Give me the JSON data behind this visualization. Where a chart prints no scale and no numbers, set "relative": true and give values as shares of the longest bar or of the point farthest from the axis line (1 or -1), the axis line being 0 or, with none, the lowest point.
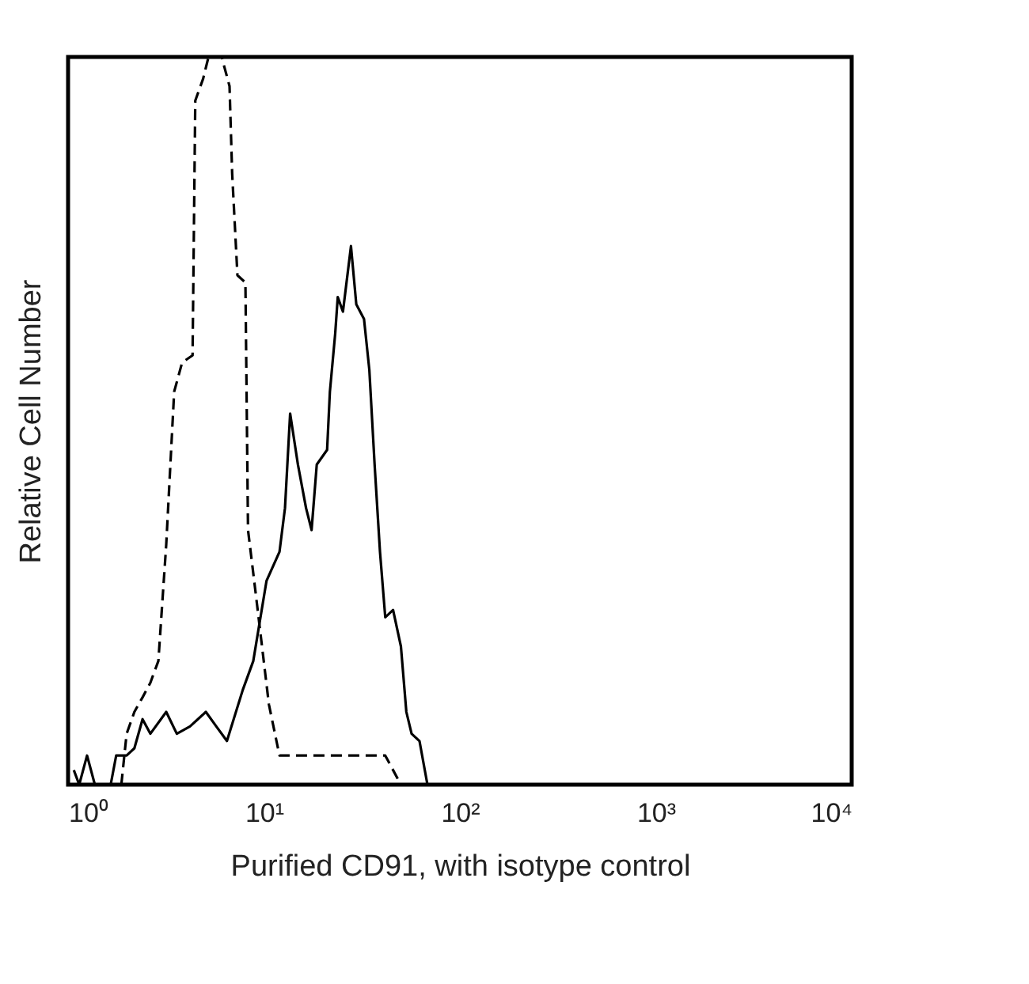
{
  "chart_data": {
    "type": "line",
    "xlabel": "Purified CD91, with isotype control",
    "ylabel": "Relative Cell Number",
    "relative": true,
    "log": "x",
    "grid": false,
    "marker": "none",
    "xlim": [
      1,
      10000
    ],
    "xticks": [
      {
        "value": 1,
        "label": "10⁰"
      },
      {
        "value": 10,
        "label": "10¹"
      },
      {
        "value": 100,
        "label": "10²"
      },
      {
        "value": 1000,
        "label": "10³"
      },
      {
        "value": 10000,
        "label": "10⁴"
      }
    ],
    "series": [
      {
        "color": "#000000",
        "line_style": "dashed",
        "x": [
          1.87,
          1.99,
          2.18,
          2.4,
          2.63,
          2.89,
          3.17,
          3.48,
          3.82,
          4.32,
          4.46,
          4.89,
          5.21,
          6.08,
          6.67,
          6.88,
          7.32,
          8.04,
          8.29,
          9.1,
          10.6,
          12.0,
          15.4,
          21.0,
          30.5,
          41.6,
          50.0
        ],
        "values": [
          0,
          0.07,
          0.1,
          0.12,
          0.14,
          0.17,
          0.33,
          0.54,
          0.58,
          0.59,
          0.94,
          0.97,
          1.0,
          1.0,
          0.96,
          0.84,
          0.7,
          0.69,
          0.35,
          0.26,
          0.11,
          0.04,
          0.04,
          0.04,
          0.04,
          0.04,
          0
        ]
      },
      {
        "color": "#000000",
        "line_style": "solid",
        "x": [
          1.07,
          1.14,
          1.25,
          1.37,
          1.65,
          1.76,
          1.99,
          2.18,
          2.4,
          2.63,
          3.17,
          3.59,
          4.19,
          5.05,
          5.71,
          6.47,
          7.79,
          8.82,
          10.3,
          12.0,
          12.8,
          13.6,
          14.9,
          16.4,
          17.5,
          18.6,
          21.0,
          21.7,
          23.1,
          23.8,
          25.3,
          27.8,
          29.6,
          32.4,
          34.5,
          36.7,
          39.1,
          41.6,
          45.6,
          50.0,
          53.3,
          56.7,
          62.2,
          68.3
        ],
        "values": [
          0.02,
          0,
          0.04,
          0,
          0,
          0.04,
          0.04,
          0.05,
          0.09,
          0.07,
          0.1,
          0.07,
          0.08,
          0.1,
          0.08,
          0.06,
          0.13,
          0.17,
          0.28,
          0.32,
          0.38,
          0.51,
          0.44,
          0.38,
          0.35,
          0.44,
          0.46,
          0.54,
          0.62,
          0.67,
          0.65,
          0.74,
          0.66,
          0.64,
          0.57,
          0.44,
          0.32,
          0.23,
          0.24,
          0.19,
          0.1,
          0.07,
          0.06,
          0
        ]
      }
    ]
  }
}
